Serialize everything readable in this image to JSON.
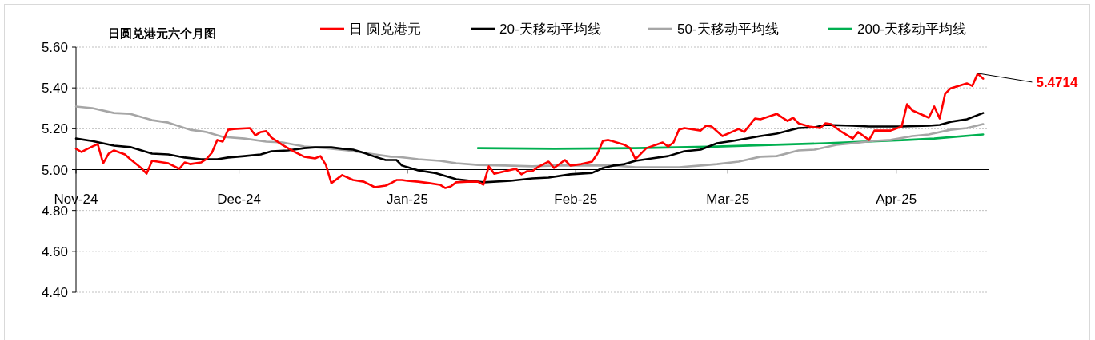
{
  "chart_data": {
    "type": "line",
    "title": "日圆兑港元六个月图",
    "legend": "top",
    "grid": "y",
    "xlim": [
      "2024-11-01",
      "2025-04-18"
    ],
    "xticks": [
      {
        "value": "2024-11-01",
        "label": "Nov-24"
      },
      {
        "value": "2024-12-01",
        "label": "Dec-24"
      },
      {
        "value": "2025-01-01",
        "label": "Jan-25"
      },
      {
        "value": "2025-02-01",
        "label": "Feb-25"
      },
      {
        "value": "2025-03-01",
        "label": "Mar-25"
      },
      {
        "value": "2025-04-01",
        "label": "Apr-25"
      }
    ],
    "ylim": [
      4.4,
      5.6
    ],
    "yticks": [
      {
        "value": 4.4,
        "label": "4.40"
      },
      {
        "value": 4.6,
        "label": "4.60"
      },
      {
        "value": 4.8,
        "label": "4.80"
      },
      {
        "value": 5.0,
        "label": "5.00"
      },
      {
        "value": 5.2,
        "label": "5.20"
      },
      {
        "value": 5.4,
        "label": "5.40"
      },
      {
        "value": 5.6,
        "label": "5.60"
      }
    ],
    "annotations": [
      {
        "text": "5.4714",
        "x": "2025-04-16",
        "y": 5.4714
      }
    ],
    "series": [
      {
        "name": "日 圆兑港元",
        "color": "#ff0000",
        "x": [
          "2024-11-01",
          "2024-11-02",
          "2024-11-03",
          "2024-11-04",
          "2024-11-05",
          "2024-11-06",
          "2024-11-07",
          "2024-11-08",
          "2024-11-10",
          "2024-11-11",
          "2024-11-13",
          "2024-11-14",
          "2024-11-15",
          "2024-11-17",
          "2024-11-18",
          "2024-11-20",
          "2024-11-21",
          "2024-11-22",
          "2024-11-24",
          "2024-11-25",
          "2024-11-26",
          "2024-11-27",
          "2024-11-28",
          "2024-11-29",
          "2024-11-30",
          "2024-12-03",
          "2024-12-04",
          "2024-12-05",
          "2024-12-06",
          "2024-12-07",
          "2024-12-09",
          "2024-12-11",
          "2024-12-13",
          "2024-12-15",
          "2024-12-16",
          "2024-12-17",
          "2024-12-18",
          "2024-12-20",
          "2024-12-22",
          "2024-12-24",
          "2024-12-26",
          "2024-12-28",
          "2024-12-29",
          "2024-12-30",
          "2024-12-31",
          "2025-01-01",
          "2025-01-03",
          "2025-01-05",
          "2025-01-07",
          "2025-01-08",
          "2025-01-09",
          "2025-01-10",
          "2025-01-12",
          "2025-01-14",
          "2025-01-15",
          "2025-01-16",
          "2025-01-17",
          "2025-01-19",
          "2025-01-21",
          "2025-01-22",
          "2025-01-23",
          "2025-01-24",
          "2025-01-25",
          "2025-01-27",
          "2025-01-28",
          "2025-01-30",
          "2025-01-31",
          "2025-02-02",
          "2025-02-04",
          "2025-02-05",
          "2025-02-06",
          "2025-02-07",
          "2025-02-10",
          "2025-02-11",
          "2025-02-12",
          "2025-02-14",
          "2025-02-17",
          "2025-02-18",
          "2025-02-19",
          "2025-02-20",
          "2025-02-21",
          "2025-02-24",
          "2025-02-25",
          "2025-02-26",
          "2025-02-28",
          "2025-03-03",
          "2025-03-04",
          "2025-03-06",
          "2025-03-07",
          "2025-03-10",
          "2025-03-12",
          "2025-03-13",
          "2025-03-14",
          "2025-03-16",
          "2025-03-18",
          "2025-03-19",
          "2025-03-20",
          "2025-03-22",
          "2025-03-24",
          "2025-03-25",
          "2025-03-27",
          "2025-03-28",
          "2025-03-31",
          "2025-04-02",
          "2025-04-03",
          "2025-04-04",
          "2025-04-07",
          "2025-04-08",
          "2025-04-09",
          "2025-04-10",
          "2025-04-11",
          "2025-04-14",
          "2025-04-15",
          "2025-04-16",
          "2025-04-17"
        ],
        "values": [
          5.102,
          5.086,
          5.1,
          5.113,
          5.125,
          5.031,
          5.078,
          5.094,
          5.074,
          5.051,
          5.008,
          4.98,
          5.043,
          5.035,
          5.031,
          5.004,
          5.035,
          5.027,
          5.035,
          5.051,
          5.082,
          5.145,
          5.137,
          5.195,
          5.199,
          5.203,
          5.168,
          5.184,
          5.188,
          5.156,
          5.121,
          5.09,
          5.063,
          5.055,
          5.066,
          5.023,
          4.934,
          4.973,
          4.949,
          4.941,
          4.914,
          4.922,
          4.934,
          4.949,
          4.949,
          4.945,
          4.941,
          4.934,
          4.926,
          4.91,
          4.918,
          4.938,
          4.941,
          4.941,
          4.926,
          5.016,
          4.98,
          4.992,
          5.004,
          4.977,
          4.992,
          4.992,
          5.012,
          5.039,
          5.008,
          5.047,
          5.02,
          5.027,
          5.039,
          5.078,
          5.141,
          5.145,
          5.121,
          5.105,
          5.051,
          5.105,
          5.133,
          5.113,
          5.133,
          5.195,
          5.203,
          5.191,
          5.215,
          5.211,
          5.164,
          5.199,
          5.184,
          5.25,
          5.246,
          5.273,
          5.238,
          5.254,
          5.227,
          5.211,
          5.203,
          5.227,
          5.223,
          5.184,
          5.152,
          5.184,
          5.145,
          5.191,
          5.191,
          5.211,
          5.32,
          5.289,
          5.254,
          5.309,
          5.25,
          5.371,
          5.398,
          5.422,
          5.41,
          5.47,
          5.445
        ]
      },
      {
        "name": "20-天移动平均线",
        "color": "#000000",
        "x": [
          "2024-11-01",
          "2024-11-04",
          "2024-11-08",
          "2024-11-11",
          "2024-11-15",
          "2024-11-18",
          "2024-11-21",
          "2024-11-24",
          "2024-11-27",
          "2024-11-29",
          "2024-12-02",
          "2024-12-05",
          "2024-12-07",
          "2024-12-10",
          "2024-12-13",
          "2024-12-15",
          "2024-12-18",
          "2024-12-20",
          "2024-12-22",
          "2024-12-24",
          "2024-12-26",
          "2024-12-28",
          "2024-12-30",
          "2024-12-31",
          "2025-01-03",
          "2025-01-06",
          "2025-01-10",
          "2025-01-14",
          "2025-01-15",
          "2025-01-20",
          "2025-01-24",
          "2025-01-27",
          "2025-01-31",
          "2025-02-04",
          "2025-02-06",
          "2025-02-08",
          "2025-02-10",
          "2025-02-12",
          "2025-02-15",
          "2025-02-18",
          "2025-02-21",
          "2025-02-24",
          "2025-02-27",
          "2025-03-02",
          "2025-03-07",
          "2025-03-10",
          "2025-03-14",
          "2025-03-17",
          "2025-03-19",
          "2025-03-24",
          "2025-03-27",
          "2025-04-02",
          "2025-04-07",
          "2025-04-09",
          "2025-04-11",
          "2025-04-14",
          "2025-04-17"
        ],
        "values": [
          5.152,
          5.14,
          5.117,
          5.11,
          5.078,
          5.074,
          5.059,
          5.051,
          5.051,
          5.059,
          5.066,
          5.074,
          5.09,
          5.094,
          5.105,
          5.109,
          5.109,
          5.102,
          5.098,
          5.082,
          5.063,
          5.047,
          5.047,
          5.02,
          4.996,
          4.984,
          4.953,
          4.941,
          4.938,
          4.945,
          4.957,
          4.961,
          4.977,
          4.984,
          5.008,
          5.02,
          5.027,
          5.043,
          5.055,
          5.066,
          5.09,
          5.098,
          5.129,
          5.141,
          5.164,
          5.176,
          5.203,
          5.207,
          5.219,
          5.215,
          5.211,
          5.211,
          5.215,
          5.219,
          5.234,
          5.246,
          5.277
        ]
      },
      {
        "name": "50-天移动平均线",
        "color": "#a6a6a6",
        "x": [
          "2024-11-01",
          "2024-11-04",
          "2024-11-08",
          "2024-11-11",
          "2024-11-15",
          "2024-11-18",
          "2024-11-22",
          "2024-11-25",
          "2024-11-28",
          "2024-12-02",
          "2024-12-06",
          "2024-12-09",
          "2024-12-13",
          "2024-12-17",
          "2024-12-21",
          "2024-12-25",
          "2024-12-29",
          "2024-12-30",
          "2025-01-03",
          "2025-01-07",
          "2025-01-10",
          "2025-01-14",
          "2025-01-19",
          "2025-01-24",
          "2025-01-28",
          "2025-02-03",
          "2025-02-08",
          "2025-02-12",
          "2025-02-17",
          "2025-02-20",
          "2025-02-24",
          "2025-02-27",
          "2025-03-03",
          "2025-03-07",
          "2025-03-10",
          "2025-03-14",
          "2025-03-17",
          "2025-03-21",
          "2025-03-24",
          "2025-03-28",
          "2025-03-31",
          "2025-04-04",
          "2025-04-07",
          "2025-04-11",
          "2025-04-14",
          "2025-04-17"
        ],
        "values": [
          5.309,
          5.301,
          5.277,
          5.273,
          5.242,
          5.23,
          5.195,
          5.184,
          5.16,
          5.152,
          5.137,
          5.133,
          5.113,
          5.105,
          5.094,
          5.078,
          5.063,
          5.063,
          5.051,
          5.043,
          5.031,
          5.023,
          5.02,
          5.016,
          5.02,
          5.02,
          5.02,
          5.012,
          5.012,
          5.012,
          5.02,
          5.027,
          5.039,
          5.063,
          5.066,
          5.094,
          5.098,
          5.121,
          5.129,
          5.141,
          5.145,
          5.164,
          5.172,
          5.195,
          5.203,
          5.223
        ]
      },
      {
        "name": "200-天移动平均线",
        "color": "#00b050",
        "x": [
          "2025-01-14",
          "2025-01-28",
          "2025-02-12",
          "2025-02-27",
          "2025-03-19",
          "2025-04-03",
          "2025-04-08",
          "2025-04-17"
        ],
        "values": [
          5.105,
          5.102,
          5.105,
          5.113,
          5.129,
          5.145,
          5.152,
          5.172
        ]
      }
    ]
  }
}
